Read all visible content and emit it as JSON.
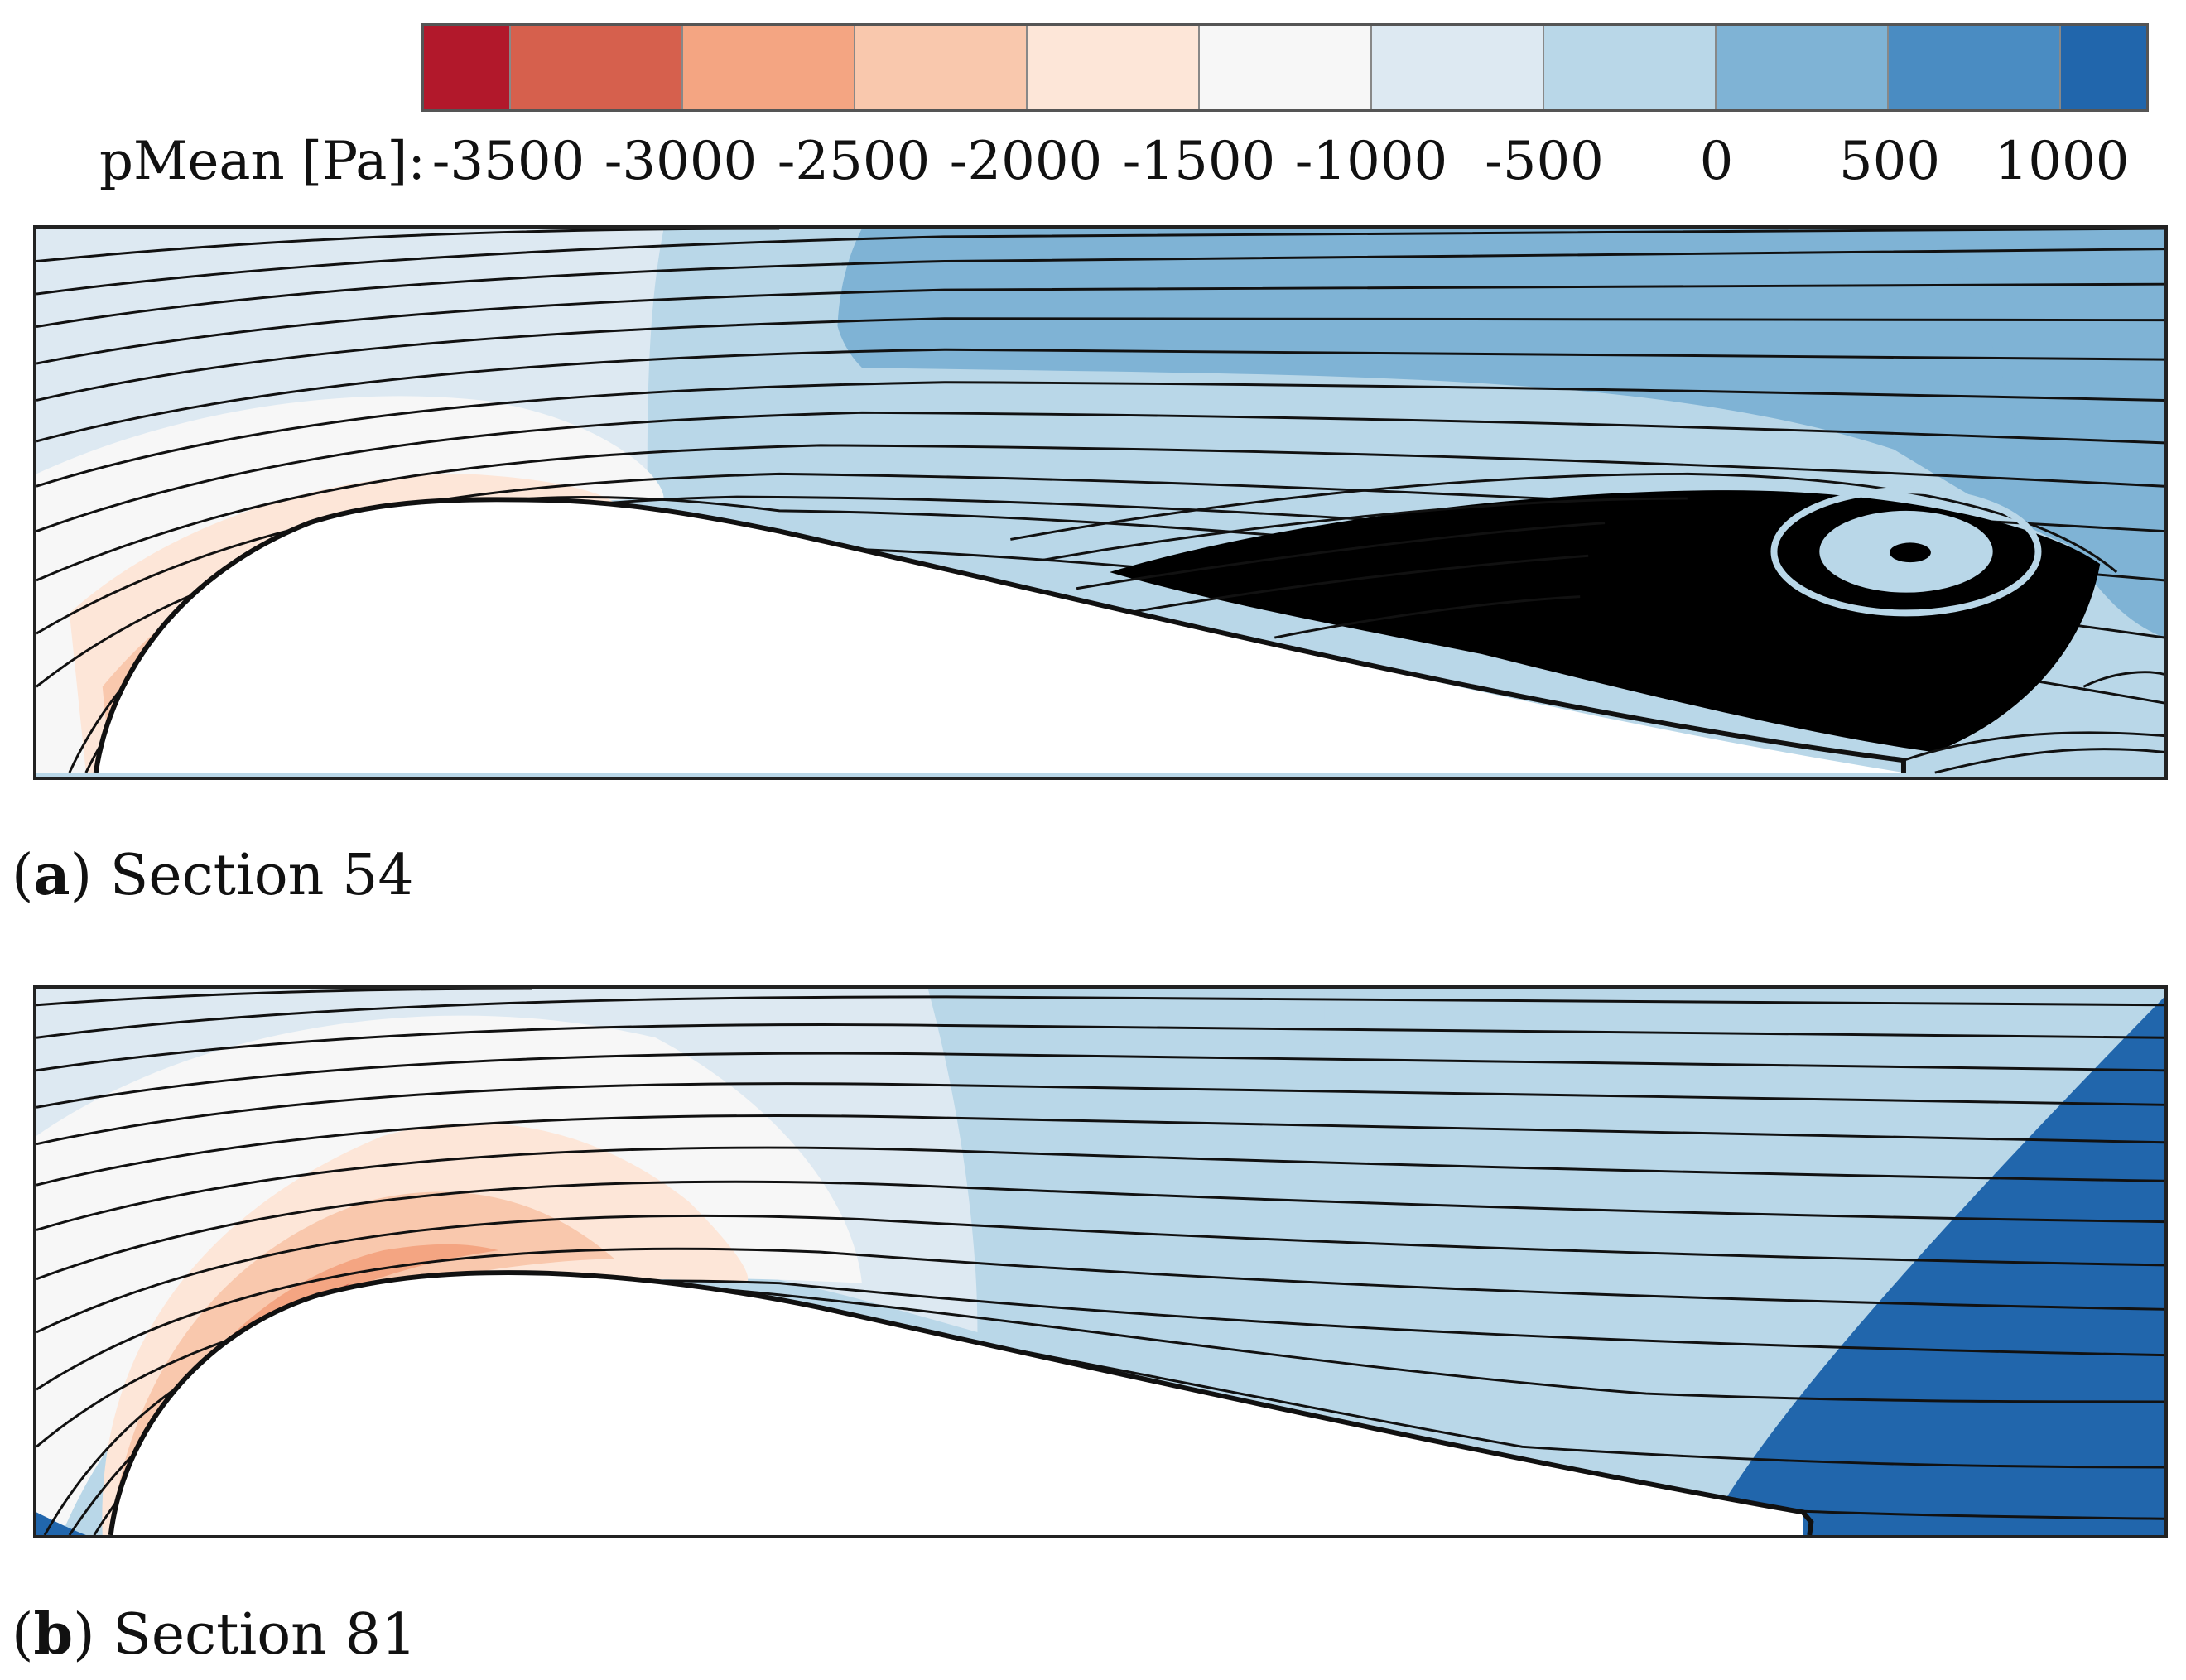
{
  "colorbar": {
    "title": "pMean [Pa]:",
    "ticks": [
      "-3500",
      "-3000",
      "-2500",
      "-2000",
      "-1500",
      "-1000",
      "-500",
      "0",
      "500",
      "1000"
    ],
    "colors": [
      "#b2182b",
      "#d6604d",
      "#f4a582",
      "#f9c8ad",
      "#fde6d8",
      "#f7f7f7",
      "#dde9f2",
      "#b9d7e8",
      "#7fb3d5",
      "#4a8cc2",
      "#2166ac"
    ]
  },
  "panels": [
    {
      "id": "a",
      "letter": "a",
      "caption": "Section 54"
    },
    {
      "id": "b",
      "letter": "b",
      "caption": "Section 81"
    }
  ],
  "palette": {
    "background": "#b9d7e8",
    "streamline": "#111111",
    "wall": "#ffffff",
    "vortex_core": "#000000"
  }
}
